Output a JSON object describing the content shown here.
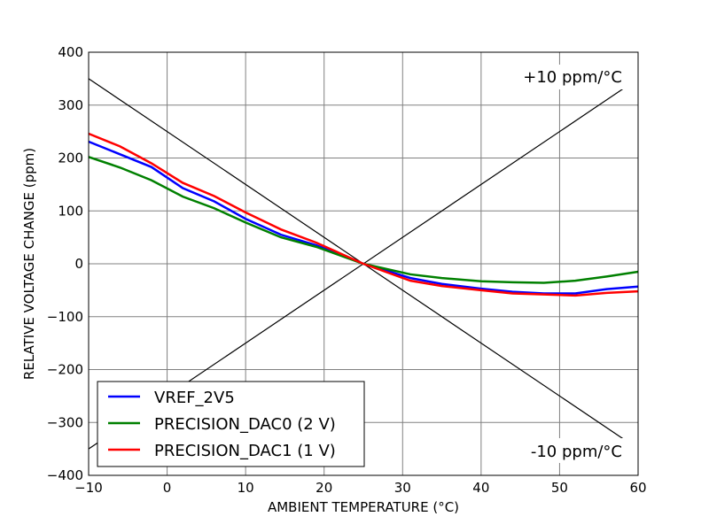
{
  "chart_data": {
    "type": "line",
    "title": "",
    "xlabel": "AMBIENT TEMPERATURE (°C)",
    "ylabel": "RELATIVE VOLTAGE CHANGE (ppm)",
    "xlim": [
      -10,
      60
    ],
    "ylim": [
      -400,
      400
    ],
    "xticks": [
      -10,
      0,
      10,
      20,
      30,
      40,
      50,
      60
    ],
    "yticks": [
      -400,
      -300,
      -200,
      -100,
      0,
      100,
      200,
      300,
      400
    ],
    "xtick_labels": [
      "−10",
      "0",
      "10",
      "20",
      "30",
      "40",
      "50",
      "60"
    ],
    "ytick_labels": [
      "−400",
      "−300",
      "−200",
      "−100",
      "0",
      "100",
      "200",
      "300",
      "400"
    ],
    "grid": true,
    "legend_position": "bottom-left",
    "series": [
      {
        "name": "VREF_2V5",
        "color": "#0000ff",
        "x": [
          -10,
          -6,
          -2,
          2,
          6,
          10,
          14.5,
          19,
          25,
          31,
          35,
          40,
          44,
          48,
          52,
          56,
          60
        ],
        "y": [
          231,
          207,
          183,
          143,
          118,
          85,
          55,
          35,
          0,
          -27,
          -38,
          -47,
          -53,
          -56,
          -56,
          -48,
          -43
        ]
      },
      {
        "name": "PRECISION_DAC0 (2 V)",
        "color": "#008000",
        "x": [
          -10,
          -6,
          -2,
          2,
          6,
          10,
          14.5,
          19,
          25,
          31,
          35,
          40,
          44,
          48,
          52,
          56,
          60
        ],
        "y": [
          202,
          182,
          158,
          127,
          105,
          78,
          50,
          32,
          0,
          -20,
          -27,
          -33,
          -35,
          -36,
          -32,
          -24,
          -15
        ]
      },
      {
        "name": "PRECISION_DAC1 (1 V)",
        "color": "#ff0000",
        "x": [
          -10,
          -6,
          -2,
          2,
          6,
          10,
          14.5,
          19,
          25,
          31,
          35,
          40,
          44,
          48,
          52,
          56,
          60
        ],
        "y": [
          246,
          222,
          190,
          153,
          128,
          97,
          65,
          40,
          0,
          -32,
          -42,
          -50,
          -56,
          -58,
          -60,
          -55,
          -52
        ]
      }
    ],
    "reference_lines": [
      {
        "label": "+10 ppm/°C",
        "color": "#000000",
        "x": [
          -10,
          60
        ],
        "y": [
          -350,
          350
        ]
      },
      {
        "label": "-10 ppm/°C",
        "color": "#000000",
        "x": [
          -10,
          60
        ],
        "y": [
          350,
          -350
        ]
      }
    ]
  }
}
